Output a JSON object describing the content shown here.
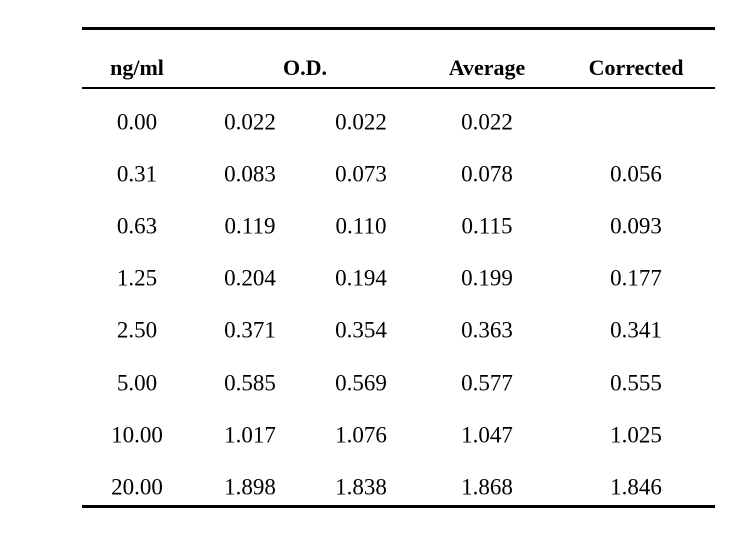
{
  "table": {
    "headers": {
      "conc": "ng/ml",
      "od": "O.D.",
      "average": "Average",
      "corrected": "Corrected"
    },
    "rows": [
      {
        "conc": "0.00",
        "od1": "0.022",
        "od2": "0.022",
        "average": "0.022",
        "corrected": ""
      },
      {
        "conc": "0.31",
        "od1": "0.083",
        "od2": "0.073",
        "average": "0.078",
        "corrected": "0.056"
      },
      {
        "conc": "0.63",
        "od1": "0.119",
        "od2": "0.110",
        "average": "0.115",
        "corrected": "0.093"
      },
      {
        "conc": "1.25",
        "od1": "0.204",
        "od2": "0.194",
        "average": "0.199",
        "corrected": "0.177"
      },
      {
        "conc": "2.50",
        "od1": "0.371",
        "od2": "0.354",
        "average": "0.363",
        "corrected": "0.341"
      },
      {
        "conc": "5.00",
        "od1": "0.585",
        "od2": "0.569",
        "average": "0.577",
        "corrected": "0.555"
      },
      {
        "conc": "10.00",
        "od1": "1.017",
        "od2": "1.076",
        "average": "1.047",
        "corrected": "1.025"
      },
      {
        "conc": "20.00",
        "od1": "1.898",
        "od2": "1.838",
        "average": "1.868",
        "corrected": "1.846"
      }
    ]
  }
}
